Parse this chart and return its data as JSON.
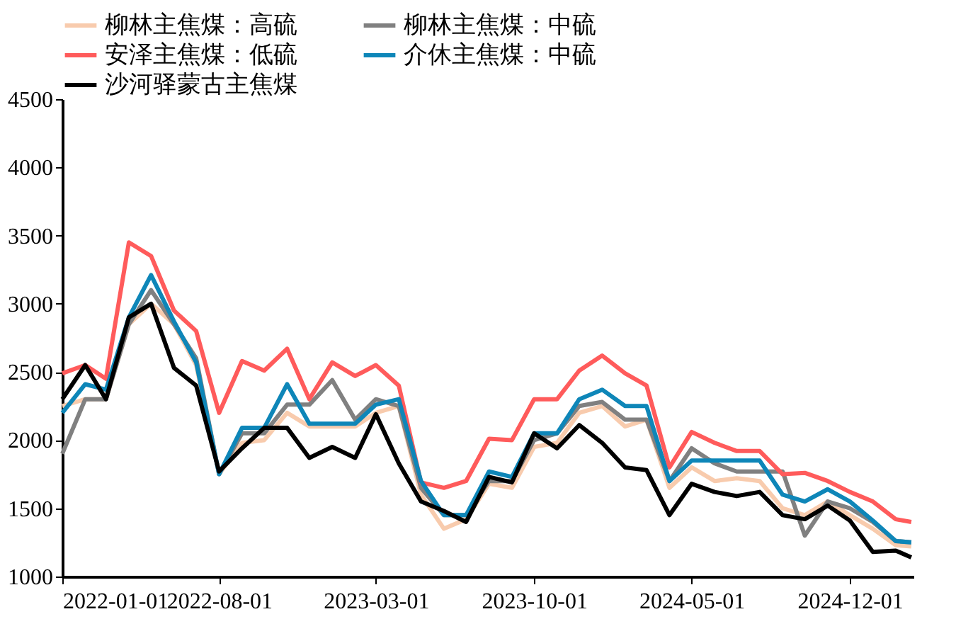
{
  "chart_data": {
    "type": "line",
    "x": [
      "2022-01-01",
      "2022-02-01",
      "2022-03-01",
      "2022-04-01",
      "2022-05-01",
      "2022-06-01",
      "2022-07-01",
      "2022-08-01",
      "2022-09-01",
      "2022-10-01",
      "2022-11-01",
      "2022-12-01",
      "2023-01-01",
      "2023-02-01",
      "2023-03-01",
      "2023-04-01",
      "2023-05-01",
      "2023-06-01",
      "2023-07-01",
      "2023-08-01",
      "2023-09-01",
      "2023-10-01",
      "2023-11-01",
      "2023-12-01",
      "2024-01-01",
      "2024-02-01",
      "2024-03-01",
      "2024-04-01",
      "2024-05-01",
      "2024-06-01",
      "2024-07-01",
      "2024-08-01",
      "2024-09-01",
      "2024-10-01",
      "2024-11-01",
      "2024-12-01",
      "2025-01-01",
      "2025-02-01",
      "2025-02-22"
    ],
    "series": [
      {
        "name": "柳林主焦煤：高硫",
        "color": "#f8cbad",
        "values": [
          2250,
          2300,
          2300,
          2850,
          3000,
          2850,
          2550,
          1750,
          1980,
          2000,
          2200,
          2100,
          2100,
          2100,
          2200,
          2250,
          1600,
          1350,
          1420,
          1680,
          1650,
          1950,
          1980,
          2200,
          2250,
          2100,
          2150,
          1650,
          1800,
          1700,
          1720,
          1700,
          1500,
          1450,
          1550,
          1450,
          1350,
          1230,
          1220
        ]
      },
      {
        "name": "柳林主焦煤：中硫",
        "color": "#808080",
        "values": [
          1900,
          2300,
          2300,
          2850,
          3100,
          2850,
          2600,
          1750,
          2050,
          2050,
          2260,
          2260,
          2440,
          2150,
          2300,
          2250,
          1650,
          1450,
          1450,
          1700,
          1700,
          2000,
          2050,
          2250,
          2280,
          2150,
          2150,
          1700,
          1940,
          1830,
          1770,
          1770,
          1770,
          1300,
          1550,
          1500,
          1400,
          1260,
          1250
        ]
      },
      {
        "name": "安泽主焦煤：低硫",
        "color": "#ff5b5b",
        "values": [
          2490,
          2550,
          2450,
          3450,
          3350,
          2950,
          2800,
          2200,
          2580,
          2510,
          2670,
          2300,
          2570,
          2470,
          2550,
          2400,
          1690,
          1650,
          1700,
          2010,
          2000,
          2300,
          2300,
          2510,
          2620,
          2490,
          2400,
          1800,
          2060,
          1980,
          1920,
          1920,
          1750,
          1760,
          1700,
          1620,
          1550,
          1420,
          1400
        ]
      },
      {
        "name": "介休主焦煤：中硫",
        "color": "#0e86b8",
        "values": [
          2200,
          2410,
          2370,
          2900,
          3210,
          2870,
          2570,
          1750,
          2090,
          2090,
          2410,
          2120,
          2120,
          2120,
          2260,
          2300,
          1700,
          1450,
          1450,
          1770,
          1730,
          2050,
          2050,
          2300,
          2370,
          2250,
          2250,
          1700,
          1850,
          1850,
          1850,
          1850,
          1600,
          1550,
          1640,
          1550,
          1410,
          1260,
          1250
        ]
      },
      {
        "name": "沙河驿蒙古主焦煤",
        "color": "#000000",
        "values": [
          2300,
          2550,
          2300,
          2900,
          3000,
          2530,
          2400,
          1770,
          1940,
          2090,
          2090,
          1870,
          1950,
          1870,
          2190,
          1830,
          1550,
          1480,
          1400,
          1730,
          1690,
          2050,
          1940,
          2110,
          1980,
          1800,
          1780,
          1450,
          1680,
          1620,
          1590,
          1620,
          1450,
          1420,
          1520,
          1410,
          1180,
          1190,
          1140
        ]
      }
    ],
    "xlim": [
      "2022-01-01",
      "2025-02-25"
    ],
    "xticks": [
      {
        "value": "2022-01-01",
        "label": "2022-01-01"
      },
      {
        "value": "2022-08-01",
        "label": "2022-08-01"
      },
      {
        "value": "2023-03-01",
        "label": "2023-03-01"
      },
      {
        "value": "2023-10-01",
        "label": "2023-10-01"
      },
      {
        "value": "2024-05-01",
        "label": "2024-05-01"
      },
      {
        "value": "2024-12-01",
        "label": "2024-12-01"
      }
    ],
    "ylim": [
      1000,
      4500
    ],
    "yticks": [
      1000,
      1500,
      2000,
      2500,
      3000,
      3500,
      4000,
      4500
    ],
    "grid": false,
    "legend": "top",
    "line_style": "solid",
    "marker": "none"
  }
}
